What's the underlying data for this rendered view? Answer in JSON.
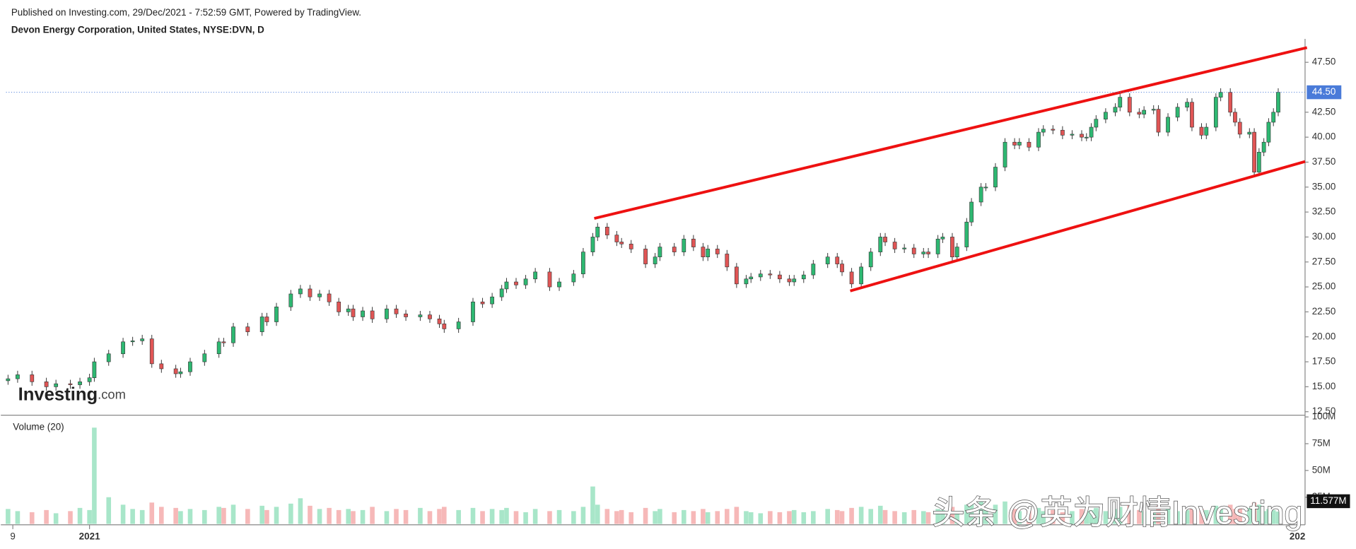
{
  "header": {
    "published": "Published on Investing.com, 29/Dec/2021 - 7:52:59 GMT, Powered by TradingView.",
    "symbol": "Devon Energy Corporation, United States, NYSE:DVN, D"
  },
  "logo": {
    "name": "Investing",
    "suffix": ".com"
  },
  "watermark": "头条 @英为财情Investing",
  "chart_data": {
    "type": "candlestick",
    "up_color": "#2eb872",
    "down_color": "#e05555",
    "volume_up_color": "#a8e6c9",
    "volume_down_color": "#f6b8b8",
    "xlim": [
      -1.5,
      270.6
    ],
    "xticks": [
      {
        "value": 1,
        "label": "9"
      },
      {
        "value": 17,
        "label": "2021"
      },
      {
        "value": 269,
        "label": "202"
      }
    ],
    "ylim": [
      12.15,
      49.85
    ],
    "yticks": [
      {
        "value": 12.5,
        "label": "12.50"
      },
      {
        "value": 15,
        "label": "15.00"
      },
      {
        "value": 17.5,
        "label": "17.50"
      },
      {
        "value": 20,
        "label": "20.00"
      },
      {
        "value": 22.5,
        "label": "22.50"
      },
      {
        "value": 25,
        "label": "25.00"
      },
      {
        "value": 27.5,
        "label": "27.50"
      },
      {
        "value": 30,
        "label": "30.00"
      },
      {
        "value": 32.5,
        "label": "32.50"
      },
      {
        "value": 35,
        "label": "35.00"
      },
      {
        "value": 37.5,
        "label": "37.50"
      },
      {
        "value": 40,
        "label": "40.00"
      },
      {
        "value": 42.5,
        "label": "42.50"
      },
      {
        "value": 47.5,
        "label": "47.50"
      }
    ],
    "price_last_label": "44.50",
    "volume_title": "Volume (20)",
    "volume_ylim": [
      0,
      100000000
    ],
    "volume_yticks": [
      {
        "value": 100000000,
        "label": "100M"
      },
      {
        "value": 75000000,
        "label": "75M"
      },
      {
        "value": 50000000,
        "label": "50M"
      },
      {
        "value": 25000000,
        "label": "25M"
      }
    ],
    "volume_last_label": "11.577M",
    "x": [
      0,
      2,
      5,
      8,
      10,
      13,
      15,
      17,
      18,
      21,
      24,
      26,
      28,
      30,
      32,
      35,
      36,
      38,
      41,
      44,
      45,
      47,
      50,
      53,
      54,
      56,
      59,
      61,
      63,
      65,
      67,
      69,
      71,
      72,
      74,
      76,
      79,
      81,
      83,
      86,
      88,
      90,
      91,
      94,
      97,
      99,
      101,
      103,
      104,
      106,
      108,
      110,
      113,
      115,
      118,
      120,
      122,
      123,
      125,
      127,
      128,
      130,
      133,
      135,
      136,
      139,
      141,
      143,
      145,
      146,
      148,
      150,
      152,
      154,
      155,
      157,
      159,
      161,
      163,
      164,
      166,
      168,
      171,
      173,
      174,
      176,
      178,
      180,
      182,
      183,
      185,
      187,
      189,
      191,
      192,
      194,
      195,
      197,
      198,
      200,
      201,
      203,
      204,
      206,
      208,
      210,
      211,
      213,
      215,
      216,
      218,
      220,
      222,
      224,
      225,
      226,
      227,
      229,
      231,
      232,
      234,
      236,
      237,
      239,
      240,
      242,
      244,
      246,
      247,
      249,
      250,
      252,
      253,
      255,
      256,
      257,
      259,
      260,
      261,
      262,
      263,
      264,
      265
    ],
    "open": [
      15.6,
      15.8,
      16.2,
      15.5,
      15.0,
      15.3,
      15.2,
      15.5,
      15.9,
      17.5,
      18.3,
      19.5,
      19.6,
      19.8,
      17.3,
      16.8,
      16.3,
      16.5,
      17.5,
      18.3,
      19.5,
      19.4,
      21,
      20.5,
      22,
      21.5,
      23,
      24.3,
      24.8,
      24,
      24.3,
      23.5,
      22.5,
      22.8,
      22,
      22.6,
      21.8,
      22.8,
      22.3,
      22,
      22.2,
      21.8,
      21.3,
      20.8,
      21.5,
      23.5,
      23.3,
      24,
      24.8,
      25.5,
      25.2,
      25.8,
      26.5,
      25,
      25.5,
      26.3,
      28.5,
      30,
      31,
      30.2,
      29.5,
      29.3,
      28.8,
      27.3,
      28,
      29,
      28.5,
      29.8,
      29,
      28,
      28.8,
      28.3,
      27,
      25.3,
      25.8,
      26,
      26.3,
      26.2,
      25.8,
      25.5,
      25.8,
      26.2,
      27.3,
      28,
      27.3,
      26.5,
      25.3,
      27,
      28.5,
      30,
      29.5,
      28.8,
      28.9,
      28.3,
      28.5,
      28.3,
      29.8,
      30,
      28,
      29,
      31.5,
      33.5,
      35,
      35,
      37,
      39.5,
      39.2,
      39.5,
      39,
      40.5,
      40.8,
      40.7,
      40.2,
      40.3,
      40,
      40,
      41,
      41.8,
      42.5,
      43,
      44,
      42.5,
      42.3,
      42.7,
      42.8,
      40.5,
      42,
      43,
      43.5,
      41,
      40.2,
      41,
      44,
      44.5,
      42.5,
      41.5,
      40.3,
      40.5,
      36.5,
      38.5,
      39.5,
      41.5,
      42.5
    ],
    "high": [
      16.2,
      16.6,
      16.6,
      15.9,
      15.7,
      15.7,
      15.9,
      16.3,
      17.9,
      18.7,
      19.9,
      20.0,
      20.2,
      20.2,
      17.7,
      17.2,
      16.9,
      17.9,
      18.7,
      19.9,
      19.9,
      21.4,
      21.4,
      22.4,
      22.4,
      23.4,
      24.7,
      25.2,
      25.2,
      24.7,
      24.7,
      23.9,
      23.2,
      23.2,
      23.0,
      23.0,
      23.2,
      23.2,
      22.7,
      22.6,
      22.6,
      22.2,
      21.7,
      21.9,
      23.9,
      23.9,
      24.4,
      25.2,
      25.9,
      25.9,
      26.2,
      26.9,
      26.9,
      25.9,
      26.7,
      28.9,
      30.4,
      31.4,
      31.4,
      30.6,
      29.9,
      29.7,
      29.2,
      28.4,
      29.4,
      29.4,
      30.2,
      30.2,
      29.4,
      29.2,
      29.2,
      28.7,
      27.4,
      26.2,
      26.4,
      26.7,
      26.7,
      26.6,
      26.2,
      26.2,
      26.6,
      27.7,
      28.4,
      28.4,
      27.7,
      26.9,
      27.4,
      28.9,
      30.4,
      30.4,
      29.9,
      29.3,
      29.3,
      28.9,
      28.9,
      30.2,
      30.4,
      30.4,
      29.4,
      31.9,
      33.9,
      35.4,
      35.4,
      37.4,
      39.9,
      39.9,
      39.9,
      39.9,
      40.9,
      41.2,
      41.2,
      41.1,
      40.7,
      40.7,
      40.4,
      41.4,
      42.2,
      42.9,
      43.4,
      44.4,
      44.4,
      42.9,
      43.1,
      43.2,
      43.2,
      42.4,
      43.4,
      43.9,
      43.9,
      41.4,
      41.4,
      44.4,
      44.9,
      44.9,
      42.9,
      41.9,
      40.9,
      40.9,
      38.9,
      39.9,
      41.9,
      42.9,
      44.9
    ],
    "low": [
      15.2,
      15.4,
      15.1,
      14.6,
      14.6,
      14.8,
      14.8,
      15.1,
      15.5,
      17.1,
      17.9,
      19.1,
      19.2,
      16.9,
      16.4,
      15.9,
      15.9,
      16.1,
      17.1,
      17.9,
      19.0,
      19.0,
      20.1,
      20.1,
      21.1,
      21.1,
      22.6,
      23.9,
      23.6,
      23.6,
      23.1,
      22.1,
      22.1,
      21.6,
      21.6,
      21.4,
      21.4,
      21.9,
      21.6,
      21.6,
      21.4,
      20.9,
      20.4,
      20.4,
      21.1,
      22.9,
      22.9,
      23.6,
      24.4,
      24.8,
      24.8,
      25.4,
      24.6,
      24.6,
      25.1,
      25.9,
      28.1,
      29.6,
      29.8,
      29.1,
      28.9,
      28.4,
      26.9,
      26.9,
      27.6,
      28.1,
      28.1,
      28.6,
      27.6,
      27.6,
      27.9,
      26.6,
      24.9,
      24.9,
      25.4,
      25.6,
      25.8,
      25.4,
      25.1,
      25.1,
      25.4,
      25.8,
      26.9,
      26.9,
      26.1,
      24.9,
      24.9,
      26.6,
      28.1,
      29.1,
      28.4,
      28.4,
      27.9,
      27.9,
      27.9,
      27.9,
      29.4,
      27.6,
      27.6,
      28.6,
      31.1,
      33.1,
      34.6,
      34.6,
      36.6,
      38.8,
      38.8,
      38.6,
      38.6,
      40.1,
      40.3,
      39.8,
      39.8,
      39.6,
      39.6,
      39.6,
      40.6,
      41.4,
      42.1,
      42.6,
      42.1,
      41.9,
      41.9,
      42.3,
      40.1,
      40.1,
      41.6,
      42.6,
      40.6,
      39.8,
      39.8,
      40.6,
      43.6,
      42.1,
      41.1,
      39.9,
      39.9,
      36.1,
      36.1,
      38.1,
      39.1,
      41.1,
      42.1
    ],
    "close": [
      15.8,
      16.2,
      15.5,
      15.0,
      15.3,
      15.2,
      15.5,
      15.9,
      17.5,
      18.3,
      19.5,
      19.6,
      19.8,
      17.3,
      16.8,
      16.3,
      16.5,
      17.5,
      18.3,
      19.5,
      19.4,
      21,
      20.5,
      22,
      21.5,
      23,
      24.3,
      24.8,
      24,
      24.3,
      23.5,
      22.5,
      22.8,
      22,
      22.6,
      21.8,
      22.8,
      22.3,
      22,
      22.2,
      21.8,
      21.3,
      20.8,
      21.5,
      23.5,
      23.3,
      24,
      24.8,
      25.5,
      25.2,
      25.8,
      26.5,
      25,
      25.5,
      26.3,
      28.5,
      30,
      31,
      30.2,
      29.5,
      29.3,
      28.8,
      27.3,
      28,
      29,
      28.5,
      29.8,
      29,
      28,
      28.8,
      28.3,
      27,
      25.3,
      25.8,
      26,
      26.3,
      26.2,
      25.8,
      25.5,
      25.8,
      26.2,
      27.3,
      28,
      27.3,
      26.5,
      25.3,
      27,
      28.5,
      30,
      29.5,
      28.8,
      28.9,
      28.3,
      28.5,
      28.3,
      29.8,
      30,
      28,
      29,
      31.5,
      33.5,
      35,
      35,
      37,
      39.5,
      39.2,
      39.5,
      39,
      40.5,
      40.8,
      40.7,
      40.2,
      40.3,
      40,
      40,
      41,
      41.8,
      42.5,
      43,
      44,
      42.5,
      42.3,
      42.7,
      42.8,
      40.5,
      42,
      43,
      43.5,
      41,
      40.2,
      41,
      44,
      44.5,
      42.5,
      41.5,
      40.3,
      40.5,
      36.5,
      38.5,
      39.5,
      41.5,
      42.5,
      44.5
    ],
    "volume": [
      14000000.0,
      12000000.0,
      11000000.0,
      13000000.0,
      10000000.0,
      12000000.0,
      15000000.0,
      13000000.0,
      90000000.0,
      25000000.0,
      18000000.0,
      14000000.0,
      13000000.0,
      20000000.0,
      16000000.0,
      15000000.0,
      12000000.0,
      14000000.0,
      13000000.0,
      16000000.0,
      15000000.0,
      18000000.0,
      14000000.0,
      17000000.0,
      13000000.0,
      16000000.0,
      19000000.0,
      24000000.0,
      17000000.0,
      14000000.0,
      15000000.0,
      13000000.0,
      14000000.0,
      12000000.0,
      13000000.0,
      16000000.0,
      12000000.0,
      14000000.0,
      13000000.0,
      15000000.0,
      12000000.0,
      14000000.0,
      16000000.0,
      13000000.0,
      15000000.0,
      12000000.0,
      14000000.0,
      13000000.0,
      15000000.0,
      12000000.0,
      11000000.0,
      14000000.0,
      12000000.0,
      13000000.0,
      12000000.0,
      16000000.0,
      35000000.0,
      18000000.0,
      14000000.0,
      12000000.0,
      13000000.0,
      11000000.0,
      15000000.0,
      12000000.0,
      14000000.0,
      11000000.0,
      13000000.0,
      12000000.0,
      14000000.0,
      11000000.0,
      12000000.0,
      14000000.0,
      16000000.0,
      12000000.0,
      11000000.0,
      10000000.0,
      12000000.0,
      11000000.0,
      12000000.0,
      13000000.0,
      11000000.0,
      12000000.0,
      14000000.0,
      13000000.0,
      12000000.0,
      15000000.0,
      16000000.0,
      14000000.0,
      17000000.0,
      13000000.0,
      12000000.0,
      11000000.0,
      13000000.0,
      12000000.0,
      11000000.0,
      14000000.0,
      13000000.0,
      16000000.0,
      12000000.0,
      18000000.0,
      20000000.0,
      22000000.0,
      15000000.0,
      18000000.0,
      21000000.0,
      14000000.0,
      12000000.0,
      13000000.0,
      15000000.0,
      12000000.0,
      13000000.0,
      11000000.0,
      12000000.0,
      14000000.0,
      12000000.0,
      13000000.0,
      15000000.0,
      12000000.0,
      14000000.0,
      16000000.0,
      18000000.0,
      13000000.0,
      12000000.0,
      11000000.0,
      17000000.0,
      14000000.0,
      12000000.0,
      13000000.0,
      16000000.0,
      14000000.0,
      13000000.0,
      17000000.0,
      15000000.0,
      18000000.0,
      14000000.0,
      16000000.0,
      15000000.0,
      20000000.0,
      18000000.0,
      12000000.0,
      14000000.0,
      13000000.0,
      11577000
    ],
    "trendlines": [
      {
        "color": "#ee1111",
        "x": [
          122.3,
          271
        ],
        "y": [
          31.86,
          48.97
        ]
      },
      {
        "color": "#ee1111",
        "x": [
          175.7,
          270.6
        ],
        "y": [
          24.6,
          37.56
        ]
      }
    ],
    "last_price_color": "#4a7bd9"
  }
}
